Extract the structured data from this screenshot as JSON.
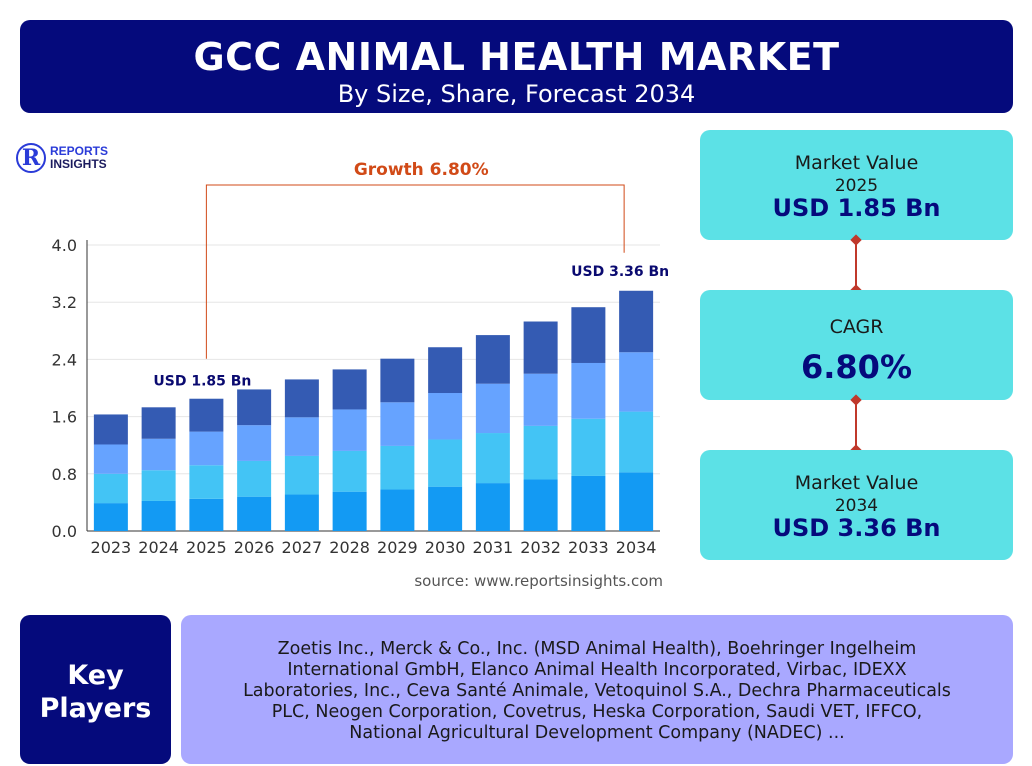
{
  "header": {
    "title": "GCC ANIMAL HEALTH MARKET",
    "subtitle": "By Size, Share, Forecast 2034"
  },
  "logo": {
    "mark": "R",
    "line1": "REPORTS",
    "line2": "INSIGHTS"
  },
  "chart_data": {
    "type": "bar",
    "stacked": true,
    "categories": [
      "2023",
      "2024",
      "2025",
      "2026",
      "2027",
      "2028",
      "2029",
      "2030",
      "2031",
      "2032",
      "2033",
      "2034"
    ],
    "series": [
      {
        "values": [
          0.39,
          0.42,
          0.45,
          0.48,
          0.51,
          0.55,
          0.58,
          0.62,
          0.67,
          0.72,
          0.77,
          0.82
        ]
      },
      {
        "values": [
          0.41,
          0.43,
          0.47,
          0.5,
          0.54,
          0.57,
          0.61,
          0.66,
          0.7,
          0.75,
          0.8,
          0.85
        ]
      },
      {
        "values": [
          0.41,
          0.44,
          0.47,
          0.5,
          0.54,
          0.58,
          0.61,
          0.65,
          0.69,
          0.73,
          0.78,
          0.83
        ]
      },
      {
        "values": [
          0.42,
          0.44,
          0.46,
          0.5,
          0.53,
          0.56,
          0.61,
          0.64,
          0.68,
          0.73,
          0.78,
          0.86
        ]
      }
    ],
    "ylim": [
      0,
      4.0
    ],
    "yticks": [
      "0.0",
      "0.8",
      "1.6",
      "2.4",
      "3.2",
      "4.0"
    ],
    "grid": true,
    "annotations": {
      "start_label": "USD 1.85 Bn",
      "start_category": "2025",
      "end_label": "USD 3.36 Bn",
      "end_category": "2034",
      "growth_label": "Growth 6.80%"
    },
    "source": "source: www.reportsinsights.com"
  },
  "colors": {
    "series": [
      "#139af3",
      "#43c4f5",
      "#66a3ff",
      "#345bb3"
    ],
    "growth": "#d14a17",
    "grid": "#e6e6e6",
    "axis": "#333333"
  },
  "kpis": {
    "market_value_2025": {
      "label": "Market Value",
      "year": "2025",
      "value": "USD 1.85 Bn"
    },
    "cagr": {
      "label": "CAGR",
      "value": "6.80%"
    },
    "market_value_2034": {
      "label": "Market Value",
      "year": "2034",
      "value": "USD 3.36 Bn"
    }
  },
  "key_players": {
    "title_line1": "Key",
    "title_line2": "Players",
    "lines": [
      "Zoetis Inc., Merck & Co., Inc. (MSD Animal Health), Boehringer Ingelheim",
      "International GmbH, Elanco Animal Health Incorporated, Virbac, IDEXX",
      "Laboratories, Inc., Ceva Santé Animale, Vetoquinol S.A., Dechra Pharmaceuticals",
      "PLC, Neogen Corporation, Covetrus, Heska Corporation, Saudi VET, IFFCO,",
      "National Agricultural Development Company (NADEC) ..."
    ]
  }
}
